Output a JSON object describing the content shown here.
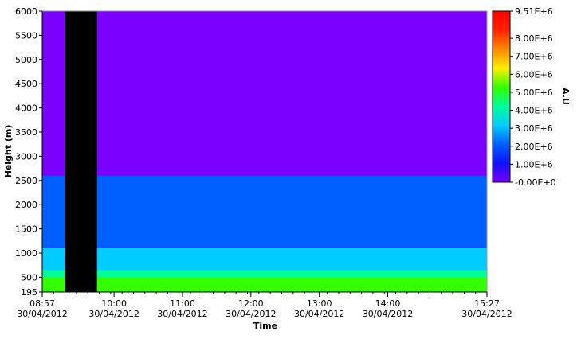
{
  "chart_data": {
    "type": "heatmap",
    "title": "",
    "xlabel": "Time",
    "ylabel": "Height (m)",
    "colorbar_label": "A.U",
    "x_range": [
      "30/04/2012 08:57",
      "30/04/2012 15:27"
    ],
    "x_ticks": [
      {
        "time": "08:57",
        "date": "30/04/2012"
      },
      {
        "time": "10:00",
        "date": "30/04/2012"
      },
      {
        "time": "11:00",
        "date": "30/04/2012"
      },
      {
        "time": "12:00",
        "date": "30/04/2012"
      },
      {
        "time": "13:00",
        "date": "30/04/2012"
      },
      {
        "time": "14:00",
        "date": "30/04/2012"
      },
      {
        "time": "15:27",
        "date": "30/04/2012"
      }
    ],
    "ylim": [
      195,
      6000
    ],
    "y_ticks": [
      "195",
      "500",
      "1000",
      "1500",
      "2000",
      "2500",
      "3000",
      "3500",
      "4000",
      "4500",
      "5000",
      "5500",
      "6000"
    ],
    "colorbar_range": [
      0,
      9510000
    ],
    "colorbar_ticks": [
      "-0.00E+0",
      "1.00E+6",
      "2.00E+6",
      "3.00E+6",
      "4.00E+6",
      "5.00E+6",
      "6.00E+6",
      "7.00E+6",
      "8.00E+6",
      "9.51E+6"
    ],
    "colormap": [
      "#7a00ff",
      "#1010ff",
      "#0060ff",
      "#00ccff",
      "#00ff99",
      "#33ff00",
      "#ffee00",
      "#ff8800",
      "#ff2200",
      "#ff0000"
    ],
    "no_data_interval": {
      "start": "09:17",
      "end": "09:45",
      "color": "#000000"
    },
    "layers": [
      {
        "name": "",
        "height_range": [
          195,
          500
        ],
        "level": 5500000
      },
      {
        "name": "",
        "height_range": [
          500,
          650
        ],
        "level": 4200000
      },
      {
        "name": "",
        "height_range": [
          650,
          1100
        ],
        "level": 3000000
      },
      {
        "name": "",
        "height_range": [
          1100,
          2600
        ],
        "level": 1600000
      },
      {
        "name": "",
        "height_range": [
          2600,
          6000
        ],
        "level": 300000
      }
    ]
  }
}
